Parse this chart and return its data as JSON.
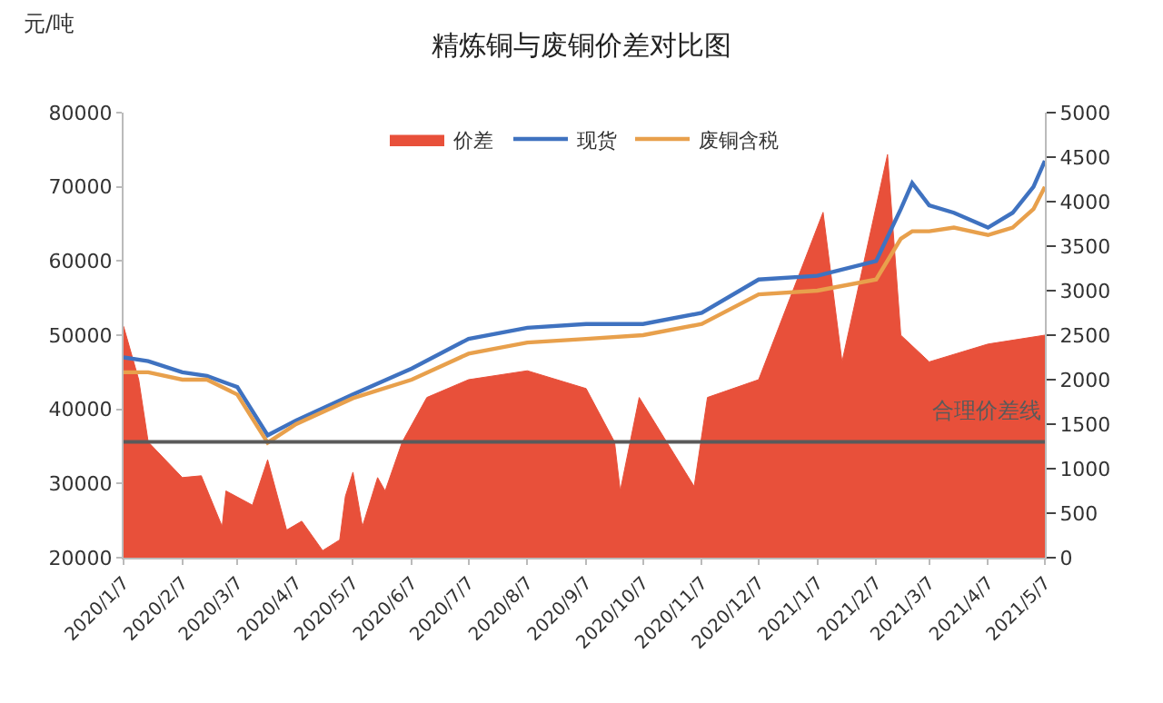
{
  "chart_data": {
    "type": "line",
    "title": "精炼铜与废铜价差对比图",
    "ylabel": "元/吨",
    "xlim": [
      "2020-01-07",
      "2021-05-07"
    ],
    "xticks": [
      {
        "value": "2020-01-07",
        "label": "2020/1/7"
      },
      {
        "value": "2020-02-07",
        "label": "2020/2/7"
      },
      {
        "value": "2020-03-07",
        "label": "2020/3/7"
      },
      {
        "value": "2020-04-07",
        "label": "2020/4/7"
      },
      {
        "value": "2020-05-07",
        "label": "2020/5/7"
      },
      {
        "value": "2020-06-07",
        "label": "2020/6/7"
      },
      {
        "value": "2020-07-07",
        "label": "2020/7/7"
      },
      {
        "value": "2020-08-07",
        "label": "2020/8/7"
      },
      {
        "value": "2020-09-07",
        "label": "2020/9/7"
      },
      {
        "value": "2020-10-07",
        "label": "2020/10/7"
      },
      {
        "value": "2020-11-07",
        "label": "2020/11/7"
      },
      {
        "value": "2020-12-07",
        "label": "2020/12/7"
      },
      {
        "value": "2021-01-07",
        "label": "2021/1/7"
      },
      {
        "value": "2021-02-07",
        "label": "2021/2/7"
      },
      {
        "value": "2021-03-07",
        "label": "2021/3/7"
      },
      {
        "value": "2021-04-07",
        "label": "2021/4/7"
      },
      {
        "value": "2021-05-07",
        "label": "2021/5/7"
      }
    ],
    "ylim": [
      20000,
      80000
    ],
    "yticks": [
      20000,
      30000,
      40000,
      50000,
      60000,
      70000,
      80000
    ],
    "y2lim": [
      0,
      5000
    ],
    "y2ticks": [
      0,
      500,
      1000,
      1500,
      2000,
      2500,
      3000,
      3500,
      4000,
      4500,
      5000
    ],
    "legend": "top",
    "marker": "none",
    "series": [
      {
        "name": "价差",
        "type": "area",
        "axis": "y2",
        "color": "#e8503a",
        "x": [
          "2020-01-07",
          "2020-01-15",
          "2020-01-20",
          "2020-02-07",
          "2020-02-17",
          "2020-02-28",
          "2020-03-01",
          "2020-03-15",
          "2020-03-23",
          "2020-04-02",
          "2020-04-10",
          "2020-04-21",
          "2020-04-30",
          "2020-05-03",
          "2020-05-07",
          "2020-05-12",
          "2020-05-20",
          "2020-05-24",
          "2020-06-02",
          "2020-06-15",
          "2020-07-07",
          "2020-08-07",
          "2020-09-07",
          "2020-09-22",
          "2020-09-25",
          "2020-10-05",
          "2020-11-03",
          "2020-11-10",
          "2020-12-07",
          "2021-01-10",
          "2021-01-20",
          "2021-02-13",
          "2021-02-20",
          "2021-03-07",
          "2021-04-07",
          "2021-05-07"
        ],
        "values": [
          2600,
          2000,
          1300,
          900,
          920,
          350,
          750,
          590,
          1100,
          310,
          410,
          80,
          200,
          690,
          960,
          350,
          900,
          750,
          1300,
          1800,
          2000,
          2100,
          1900,
          1300,
          750,
          1800,
          800,
          1800,
          2000,
          3880,
          2200,
          4530,
          2500,
          2200,
          2400,
          2500
        ]
      },
      {
        "name": "现货",
        "color": "#3f72c0",
        "x": [
          "2020-01-07",
          "2020-01-20",
          "2020-02-07",
          "2020-02-20",
          "2020-03-07",
          "2020-03-23",
          "2020-04-07",
          "2020-05-07",
          "2020-06-07",
          "2020-07-07",
          "2020-08-07",
          "2020-09-07",
          "2020-10-07",
          "2020-11-07",
          "2020-12-07",
          "2021-01-07",
          "2021-02-07",
          "2021-02-20",
          "2021-02-26",
          "2021-03-07",
          "2021-03-20",
          "2021-04-07",
          "2021-04-20",
          "2021-05-01",
          "2021-05-07"
        ],
        "values": [
          47000,
          46500,
          45000,
          44500,
          43000,
          36500,
          38500,
          42000,
          45500,
          49500,
          51000,
          51500,
          51500,
          53000,
          57500,
          58000,
          60000,
          67000,
          70500,
          67500,
          66500,
          64500,
          66500,
          70000,
          73500
        ]
      },
      {
        "name": "废铜含税",
        "color": "#e8a04c",
        "x": [
          "2020-01-07",
          "2020-01-20",
          "2020-02-07",
          "2020-02-20",
          "2020-03-07",
          "2020-03-23",
          "2020-04-07",
          "2020-05-07",
          "2020-06-07",
          "2020-07-07",
          "2020-08-07",
          "2020-09-07",
          "2020-10-07",
          "2020-11-07",
          "2020-12-07",
          "2021-01-07",
          "2021-02-07",
          "2021-02-20",
          "2021-02-26",
          "2021-03-07",
          "2021-03-20",
          "2021-04-07",
          "2021-04-20",
          "2021-05-01",
          "2021-05-07"
        ],
        "values": [
          45000,
          45000,
          44000,
          44000,
          42000,
          35500,
          38000,
          41500,
          44000,
          47500,
          49000,
          49500,
          50000,
          51500,
          55500,
          56000,
          57500,
          63000,
          64000,
          64000,
          64500,
          63500,
          64500,
          67000,
          70000
        ]
      }
    ],
    "ref_lines": [
      {
        "axis": "y2",
        "value": 1300,
        "label": "合理价差线",
        "color": "#5a5a5a"
      }
    ]
  }
}
